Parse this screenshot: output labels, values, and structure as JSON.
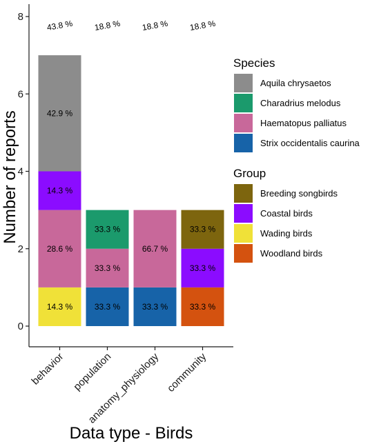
{
  "chart_data": {
    "type": "bar",
    "stacked": true,
    "xlabel": "Data type - Birds",
    "ylabel": "Number of reports",
    "ylim": [
      0,
      8
    ],
    "yticks": [
      0,
      2,
      4,
      6,
      8
    ],
    "grid": false,
    "categories": [
      "behavior",
      "population",
      "anatomy_physiology",
      "community"
    ],
    "top_labels": [
      "43.8 %",
      "18.8 %",
      "18.8 %",
      "18.8 %"
    ],
    "stacks": [
      [
        {
          "key": "Wading birds",
          "value": 1,
          "label": "14.3 %"
        },
        {
          "key": "Haematopus palliatus",
          "value": 2,
          "label": "28.6 %"
        },
        {
          "key": "Coastal birds",
          "value": 1,
          "label": "14.3 %"
        },
        {
          "key": "Aquila chrysaetos",
          "value": 3,
          "label": "42.9 %"
        }
      ],
      [
        {
          "key": "Strix occidentalis caurina",
          "value": 1,
          "label": "33.3 %"
        },
        {
          "key": "Haematopus palliatus",
          "value": 1,
          "label": "33.3 %"
        },
        {
          "key": "Charadrius melodus",
          "value": 1,
          "label": "33.3 %"
        }
      ],
      [
        {
          "key": "Strix occidentalis caurina",
          "value": 1,
          "label": "33.3 %"
        },
        {
          "key": "Haematopus palliatus",
          "value": 2,
          "label": "66.7 %"
        }
      ],
      [
        {
          "key": "Woodland birds",
          "value": 1,
          "label": "33.3 %"
        },
        {
          "key": "Coastal birds",
          "value": 1,
          "label": "33.3 %"
        },
        {
          "key": "Breeding songbirds",
          "value": 1,
          "label": "33.3 %"
        }
      ]
    ],
    "legends": [
      {
        "title": "Species",
        "entries": [
          {
            "name": "Aquila chrysaetos",
            "color": "#8c8c8c"
          },
          {
            "name": "Charadrius melodus",
            "color": "#1b9a6c"
          },
          {
            "name": "Haematopus palliatus",
            "color": "#c8689a"
          },
          {
            "name": "Strix occidentalis caurina",
            "color": "#1763a8"
          }
        ]
      },
      {
        "title": "Group",
        "entries": [
          {
            "name": "Breeding songbirds",
            "color": "#7d650e"
          },
          {
            "name": "Coastal birds",
            "color": "#8b0cff"
          },
          {
            "name": "Wading birds",
            "color": "#f0e138"
          },
          {
            "name": "Woodland birds",
            "color": "#d4520f"
          }
        ]
      }
    ]
  }
}
